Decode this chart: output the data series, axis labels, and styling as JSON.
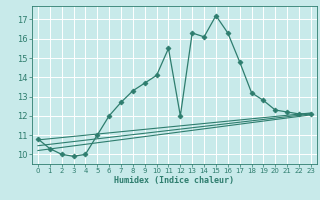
{
  "xlabel": "Humidex (Indice chaleur)",
  "bg_color": "#c8eaea",
  "grid_color": "#ffffff",
  "line_color": "#2e7d6e",
  "xlim": [
    -0.5,
    23.5
  ],
  "ylim": [
    9.5,
    17.7
  ],
  "xticks": [
    0,
    1,
    2,
    3,
    4,
    5,
    6,
    7,
    8,
    9,
    10,
    11,
    12,
    13,
    14,
    15,
    16,
    17,
    18,
    19,
    20,
    21,
    22,
    23
  ],
  "yticks": [
    10,
    11,
    12,
    13,
    14,
    15,
    16,
    17
  ],
  "series1_x": [
    0,
    1,
    2,
    3,
    4,
    5,
    6,
    7,
    8,
    9,
    10,
    11,
    12,
    13,
    14,
    15,
    16,
    17,
    18,
    19,
    20,
    21,
    22,
    23
  ],
  "series1_y": [
    10.8,
    10.3,
    10.0,
    9.9,
    10.0,
    11.0,
    12.0,
    12.7,
    13.3,
    13.7,
    14.1,
    15.5,
    12.0,
    16.3,
    16.1,
    17.2,
    16.3,
    14.8,
    13.2,
    12.8,
    12.3,
    12.2,
    12.1,
    12.1
  ],
  "trend1_x": [
    0,
    23
  ],
  "trend1_y": [
    10.2,
    12.05
  ],
  "trend2_x": [
    0,
    23
  ],
  "trend2_y": [
    10.45,
    12.1
  ],
  "trend3_x": [
    0,
    23
  ],
  "trend3_y": [
    10.75,
    12.15
  ]
}
